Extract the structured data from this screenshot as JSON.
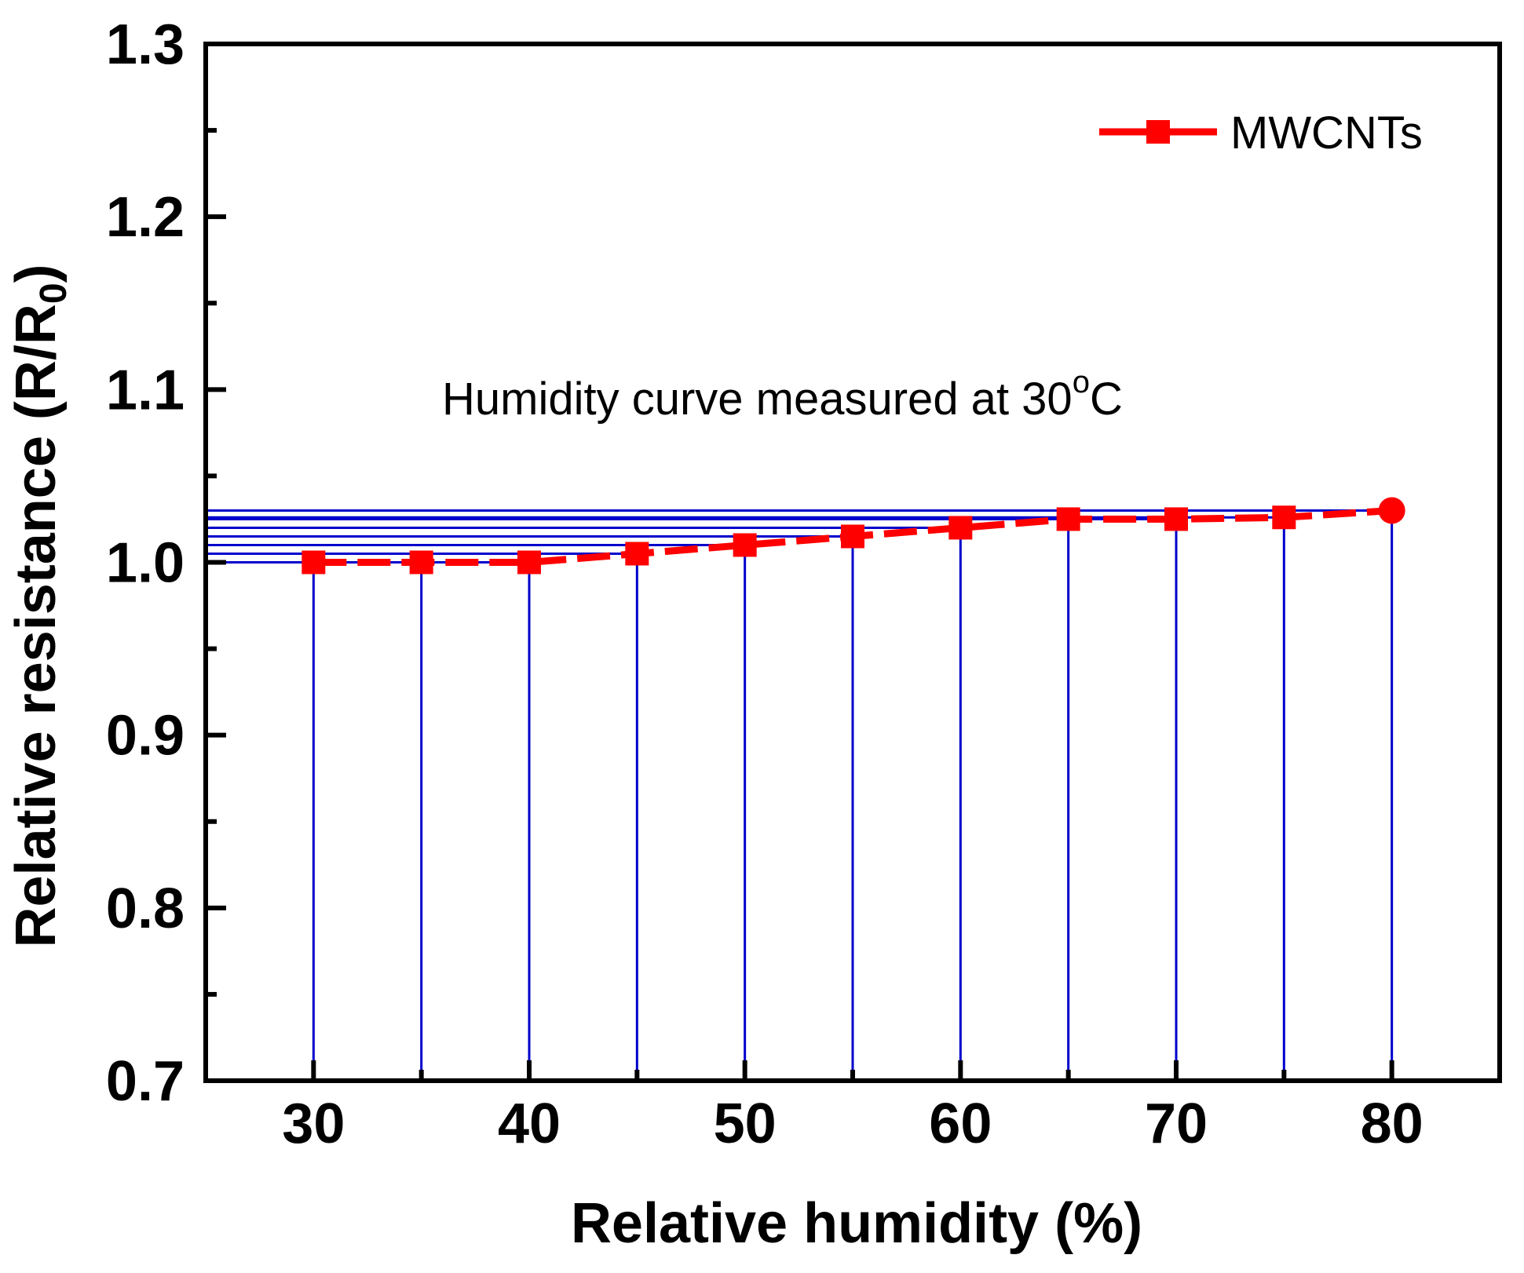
{
  "chart_data": {
    "type": "line",
    "title": "",
    "xlabel": "Relative humidity (%)",
    "ylabel": "Relative resistance (R/R",
    "ylabel_subscript": "0",
    "ylabel_suffix": ")",
    "xlim": [
      25,
      85
    ],
    "ylim": [
      0.7,
      1.3
    ],
    "xticks": [
      30,
      40,
      50,
      60,
      70,
      80
    ],
    "xtick_labels": [
      "30",
      "40",
      "50",
      "60",
      "70",
      "80"
    ],
    "yticks": [
      0.7,
      0.8,
      0.9,
      1.0,
      1.1,
      1.2,
      1.3
    ],
    "ytick_labels": [
      "0.7",
      "0.8",
      "0.9",
      "1.0",
      "1.1",
      "1.2",
      "1.3"
    ],
    "grid": false,
    "legend_position": "top-right",
    "annotation": {
      "text": "Humidity curve measured at 30",
      "superscript": "o",
      "suffix": "C"
    },
    "drop_lines": {
      "color": "#0000CC",
      "vertical": true,
      "horizontal": true
    },
    "series": [
      {
        "name": "MWCNTs",
        "color": "#FF0000",
        "marker": "square",
        "line_style": "dashed",
        "last_marker": "circle",
        "x": [
          30,
          35,
          40,
          45,
          50,
          55,
          60,
          65,
          70,
          75,
          80
        ],
        "y": [
          1.0,
          1.0,
          1.0,
          1.005,
          1.01,
          1.015,
          1.02,
          1.025,
          1.025,
          1.026,
          1.03
        ]
      }
    ]
  }
}
